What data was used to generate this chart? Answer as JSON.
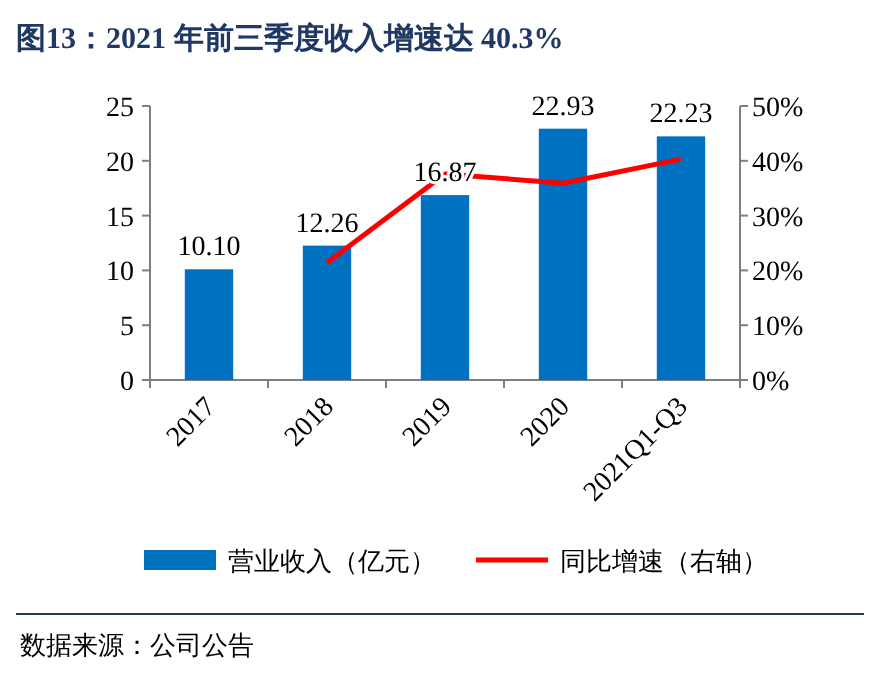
{
  "chart_data": {
    "type": "bar",
    "title": "图13：2021 年前三季度收入增速达 40.3%",
    "categories": [
      "2017",
      "2018",
      "2019",
      "2020",
      "2021Q1-Q3"
    ],
    "series": [
      {
        "name": "营业收入（亿元）",
        "color": "#0070c0",
        "values": [
          10.1,
          12.26,
          16.87,
          22.93,
          22.23
        ],
        "value_labels": [
          "10.10",
          "12.26",
          "16.87",
          "22.93",
          "22.23"
        ]
      },
      {
        "name": "同比增速（右轴）",
        "type": "line",
        "axis": "y2",
        "color": "#ff0000",
        "values": [
          null,
          21.4,
          37.6,
          35.9,
          40.3
        ]
      }
    ],
    "ylim": [
      0,
      25
    ],
    "yticks": [
      0,
      5,
      10,
      15,
      20,
      25
    ],
    "y2lim": [
      0,
      50
    ],
    "y2ticks": [
      {
        "value": 0,
        "label": "0%"
      },
      {
        "value": 10,
        "label": "10%"
      },
      {
        "value": 20,
        "label": "20%"
      },
      {
        "value": 30,
        "label": "30%"
      },
      {
        "value": 40,
        "label": "40%"
      },
      {
        "value": 50,
        "label": "50%"
      }
    ],
    "legend": "bottom",
    "marker": "none",
    "annotations": [
      "数据来源：公司公告"
    ]
  }
}
